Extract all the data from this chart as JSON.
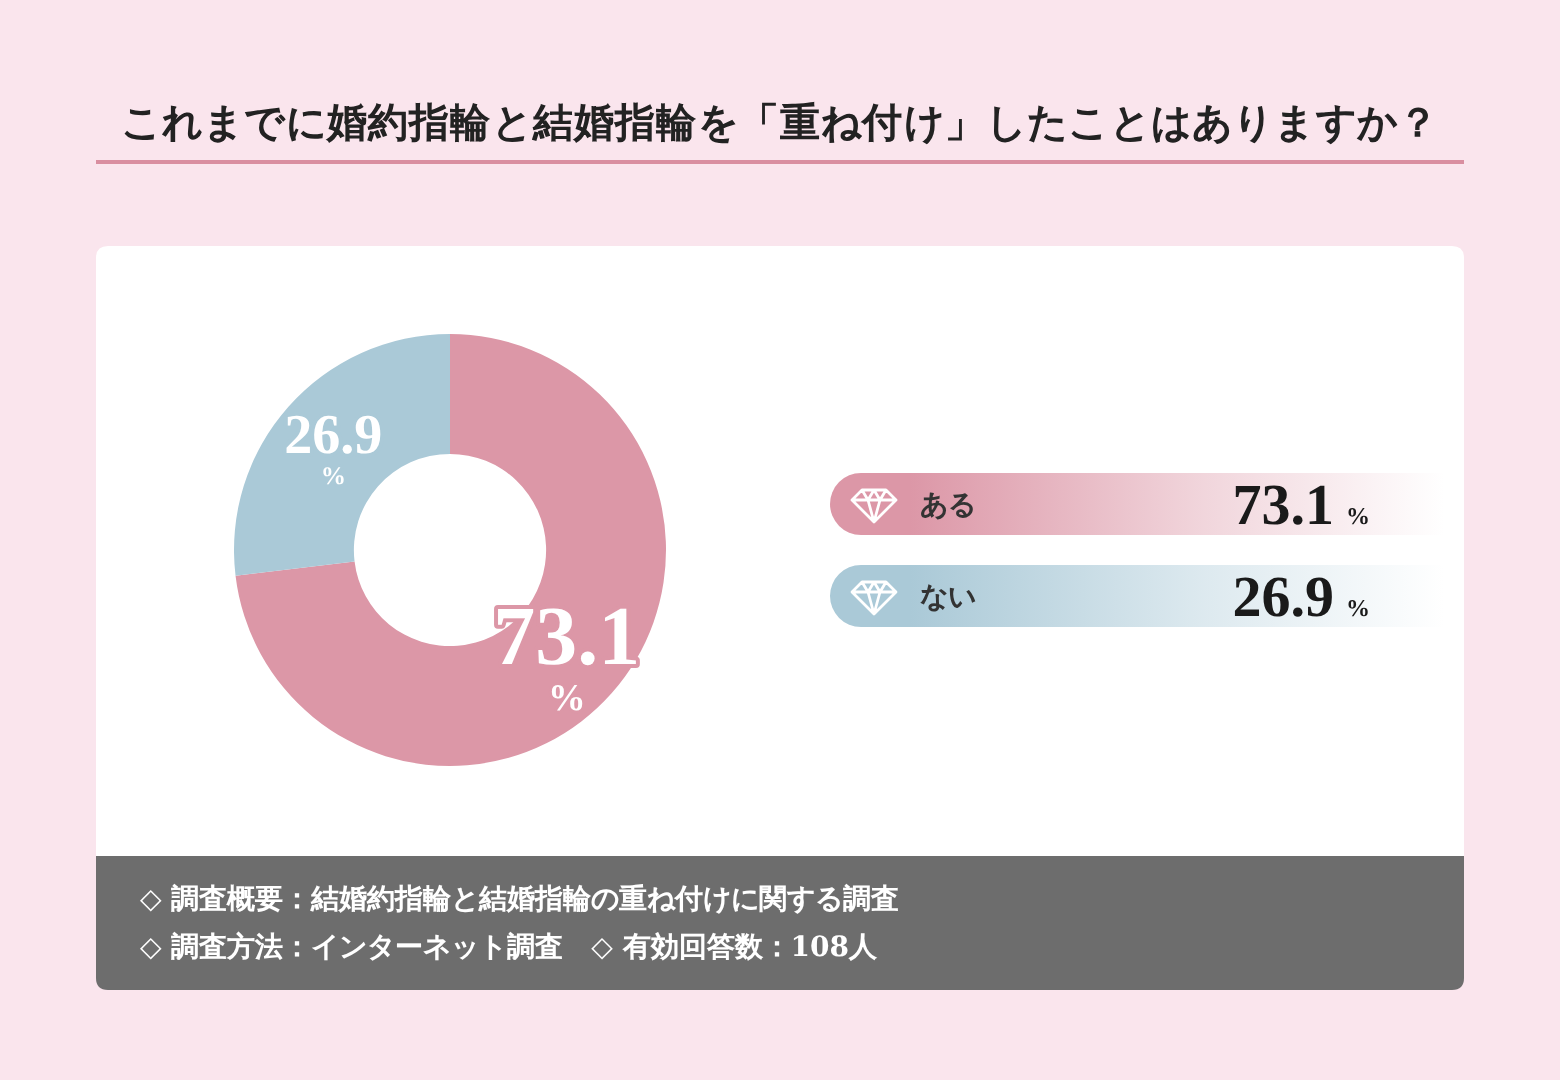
{
  "chart_data": {
    "type": "donut",
    "title": "これまでに婚約指輪と結婚指輪を「重ね付け」したことはありますか？",
    "categories": [
      "ある",
      "ない"
    ],
    "values": [
      73.1,
      26.9
    ],
    "colors": [
      "#dc97a7",
      "#aac9d7"
    ],
    "value_labels": [
      "73.1%",
      "26.9%"
    ],
    "legend": "right",
    "annotations": [
      "◇ 調査概要：結婚約指輪と結婚指輪の重ね付けに関する調査",
      "◇ 調査方法：インターネット調査　◇ 有効回答数：108人"
    ]
  }
}
